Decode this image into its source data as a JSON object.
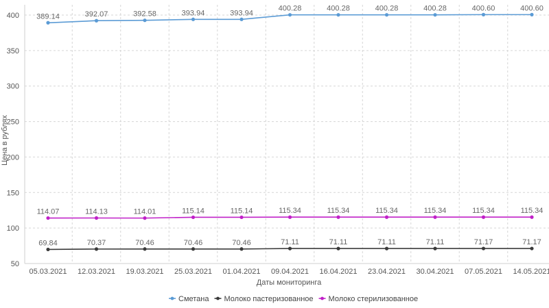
{
  "chart_data": {
    "type": "line",
    "xlabel": "Даты мониторинга",
    "ylabel": "Цена в рублях",
    "ylim": [
      50,
      400
    ],
    "yticks": [
      50,
      100,
      150,
      200,
      250,
      300,
      350,
      400
    ],
    "grid": true,
    "legend_position": "bottom",
    "categories": [
      "05.03.2021",
      "12.03.2021",
      "19.03.2021",
      "25.03.2021",
      "01.04.2021",
      "09.04.2021",
      "16.04.2021",
      "23.04.2021",
      "30.04.2021",
      "07.05.2021",
      "14.05.2021"
    ],
    "series": [
      {
        "name": "Сметана",
        "color": "#5b9bd5",
        "values": [
          389.14,
          392.07,
          392.58,
          393.94,
          393.94,
          400.28,
          400.28,
          400.28,
          400.28,
          400.6,
          400.6
        ],
        "labels": [
          "389.14",
          "392.07",
          "392.58",
          "393.94",
          "393.94",
          "400.28",
          "400.28",
          "400.28",
          "400.28",
          "400.60",
          "400.60"
        ]
      },
      {
        "name": "Молоко пастеризованное",
        "color": "#3a3a3a",
        "values": [
          69.84,
          70.37,
          70.46,
          70.46,
          70.46,
          71.11,
          71.11,
          71.11,
          71.11,
          71.17,
          71.17
        ],
        "labels": [
          "69.84",
          "70.37",
          "70.46",
          "70.46",
          "70.46",
          "71.11",
          "71.11",
          "71.11",
          "71.11",
          "71.17",
          "71.17"
        ]
      },
      {
        "name": "Молоко стерилизованное",
        "color": "#c020c8",
        "values": [
          114.07,
          114.13,
          114.01,
          115.14,
          115.14,
          115.34,
          115.34,
          115.34,
          115.34,
          115.34,
          115.34
        ],
        "labels": [
          "114.07",
          "114.13",
          "114.01",
          "115.14",
          "115.14",
          "115.34",
          "115.34",
          "115.34",
          "115.34",
          "115.34",
          "115.34"
        ]
      }
    ]
  }
}
